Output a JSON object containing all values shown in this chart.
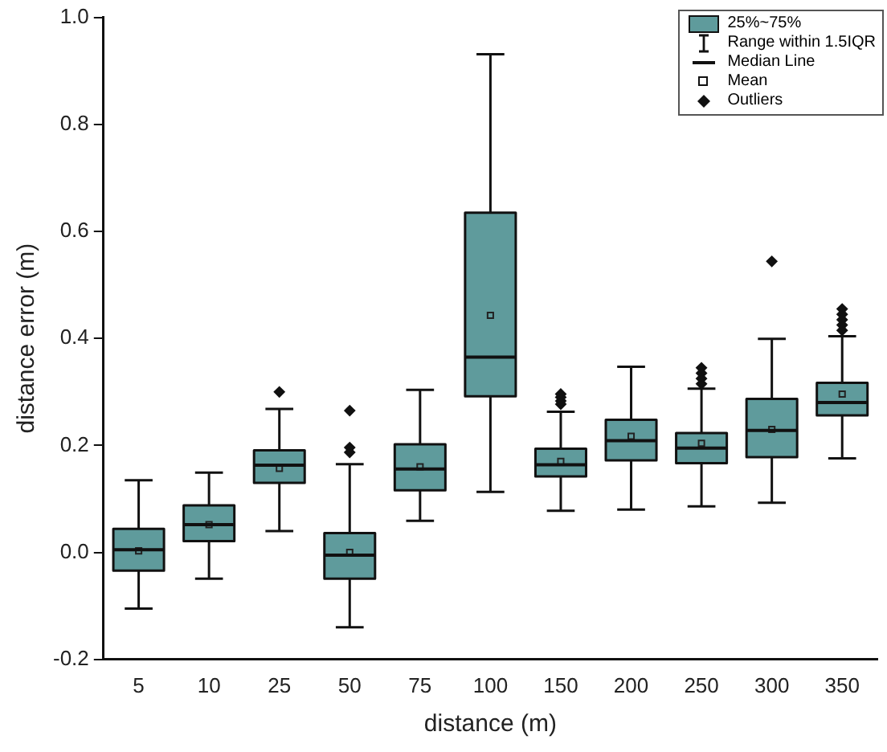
{
  "chart_data": {
    "type": "box",
    "xlabel": "distance (m)",
    "ylabel": "distance error (m)",
    "categories": [
      "5",
      "10",
      "25",
      "50",
      "75",
      "100",
      "150",
      "200",
      "250",
      "300",
      "350"
    ],
    "series": [
      {
        "name": "25%~75%",
        "color": "#5f9b9c",
        "boxes": [
          {
            "low": -0.105,
            "q1": -0.034,
            "median": 0.005,
            "q3": 0.044,
            "high": 0.135,
            "mean": 0.003
          },
          {
            "low": -0.049,
            "q1": 0.021,
            "median": 0.052,
            "q3": 0.088,
            "high": 0.149,
            "mean": 0.052
          },
          {
            "low": 0.04,
            "q1": 0.13,
            "median": 0.163,
            "q3": 0.191,
            "high": 0.268,
            "mean": 0.157,
            "outliers": [
              0.3
            ]
          },
          {
            "low": -0.14,
            "q1": -0.049,
            "median": -0.005,
            "q3": 0.036,
            "high": 0.165,
            "mean": 0.0,
            "outliers": [
              0.187,
              0.196,
              0.265
            ]
          },
          {
            "low": 0.059,
            "q1": 0.116,
            "median": 0.156,
            "q3": 0.202,
            "high": 0.304,
            "mean": 0.16
          },
          {
            "low": 0.113,
            "q1": 0.292,
            "median": 0.365,
            "q3": 0.635,
            "high": 0.931,
            "mean": 0.443
          },
          {
            "low": 0.078,
            "q1": 0.142,
            "median": 0.164,
            "q3": 0.194,
            "high": 0.263,
            "mean": 0.17,
            "outliers": [
              0.277,
              0.283,
              0.29,
              0.296
            ]
          },
          {
            "low": 0.08,
            "q1": 0.172,
            "median": 0.209,
            "q3": 0.248,
            "high": 0.347,
            "mean": 0.217
          },
          {
            "low": 0.086,
            "q1": 0.167,
            "median": 0.195,
            "q3": 0.223,
            "high": 0.306,
            "mean": 0.204,
            "outliers": [
              0.315,
              0.325,
              0.335,
              0.345
            ]
          },
          {
            "low": 0.093,
            "q1": 0.178,
            "median": 0.228,
            "q3": 0.287,
            "high": 0.399,
            "mean": 0.23,
            "outliers": [
              0.544
            ]
          },
          {
            "low": 0.176,
            "q1": 0.256,
            "median": 0.28,
            "q3": 0.317,
            "high": 0.404,
            "mean": 0.296,
            "outliers": [
              0.415,
              0.425,
              0.435,
              0.445,
              0.455
            ]
          }
        ]
      }
    ],
    "ylim": [
      -0.2,
      1.0
    ],
    "yticks": [
      -0.2,
      {
        "value": 0,
        "label": "0.0"
      },
      0.2,
      0.4,
      0.6,
      0.8,
      {
        "value": 1,
        "label": "1.0"
      }
    ],
    "annotations": [
      "Range within 1.5IQR",
      "Median Line",
      "Mean",
      "Outliers"
    ],
    "legend": "top right",
    "grid": false
  }
}
